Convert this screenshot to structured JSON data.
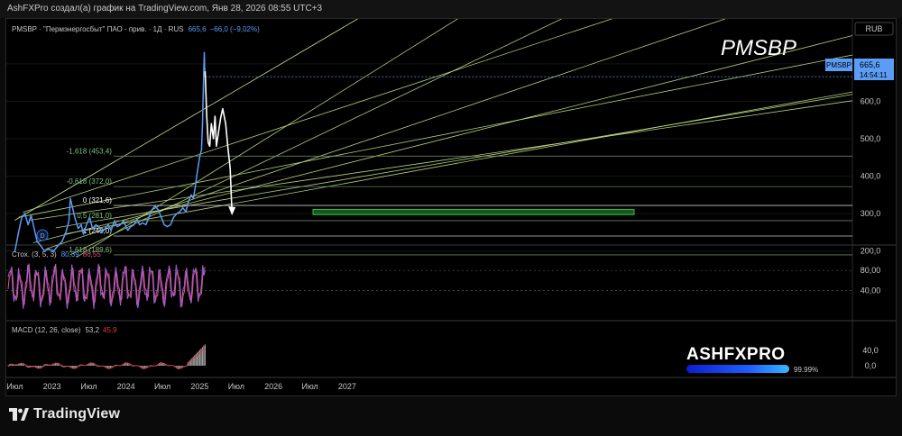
{
  "header": {
    "attribution": "AshFXPro создал(а) график на TradingView.com, Янв 28, 2026 08:55 UTC+3"
  },
  "legend": {
    "symbol": "PMSBP · \"Пермэнергосбыт\" ПАО - прив. · 1Д · RUS",
    "price": "665,6",
    "change": "−66,0 (−9,02%)"
  },
  "watermark": "PMSBP",
  "currency": "RUB",
  "price_tag": {
    "symbol": "PMSBP",
    "price": "665,6",
    "time": "14:54:11"
  },
  "fib_labels": [
    "-1,618 (453,4)",
    "-0,618 (372,0)",
    "0 (321,6)",
    "0,5 (281,0)",
    "1 (240,0)",
    "1,618 (189,6)"
  ],
  "stoch": {
    "label": "Стох. (3, 5, 3)",
    "k": "80,39",
    "d": "86,55"
  },
  "macd": {
    "label": "MACD (12, 26, close)",
    "macd": "53,2",
    "signal": "45,9"
  },
  "brand": {
    "name": "ASHFXPRO",
    "progress_label": "99.99%",
    "progress": 0.9999
  },
  "footer": {
    "logo_text": "TradingView"
  },
  "event_marker": "D",
  "colors": {
    "price_line": "#5b9cf5",
    "stoch_k": "#9b59d0",
    "stoch_d": "#e05a7a",
    "macd_hist": "#9a9a9a",
    "macd_signal": "#d93a3a",
    "trend": "#c6e48b",
    "zone": "#2fbf3a"
  },
  "chart_data": [
    {
      "type": "line",
      "title": "PMSBP",
      "x_ticks": [
        "Июл",
        "2023",
        "Июл",
        "2024",
        "Июл",
        "2025",
        "Июл",
        "2026",
        "Июл",
        "2027"
      ],
      "y_ticks": [
        "200,0",
        "300,0",
        "400,0",
        "500,0",
        "600,0",
        "700,0"
      ],
      "ylim": [
        183,
        745
      ],
      "series": [
        {
          "x": [
            "2023-07-01",
            "2023-07-20",
            "2023-08-05",
            "2023-08-20",
            "2023-09-05",
            "2023-09-20",
            "2023-10-05",
            "2023-10-20",
            "2023-11-05",
            "2023-11-25",
            "2023-12-15",
            "2024-01-10",
            "2024-02-01",
            "2024-02-20",
            "2024-03-10",
            "2024-03-25",
            "2024-04-01",
            "2024-04-10",
            "2024-04-25",
            "2024-05-10",
            "2024-05-25",
            "2024-06-05",
            "2024-06-20",
            "2024-07-05",
            "2024-07-20",
            "2024-08-05",
            "2024-08-20",
            "2024-09-05",
            "2024-09-20",
            "2024-10-05",
            "2024-10-20",
            "2024-11-05",
            "2024-11-20",
            "2024-12-05",
            "2024-12-20",
            "2025-01-10",
            "2025-01-25",
            "2025-02-10",
            "2025-02-25",
            "2025-03-10",
            "2025-03-25",
            "2025-04-10",
            "2025-04-25",
            "2025-05-10",
            "2025-05-25",
            "2025-06-10",
            "2025-06-25",
            "2025-07-10",
            "2025-07-25",
            "2025-08-10",
            "2025-08-25",
            "2025-09-10",
            "2025-09-25",
            "2025-10-10",
            "2025-10-25",
            "2025-11-05",
            "2025-11-20",
            "2025-12-01",
            "2025-12-10",
            "2025-12-20",
            "2026-01-01",
            "2026-01-05",
            "2026-01-10",
            "2026-01-15",
            "2026-01-18",
            "2026-01-20",
            "2026-01-22",
            "2026-01-24",
            "2026-01-26",
            "2026-01-28"
          ],
          "values": [
            198,
            250,
            290,
            300,
            270,
            295,
            260,
            225,
            215,
            200,
            205,
            200,
            215,
            225,
            250,
            280,
            340,
            320,
            285,
            260,
            270,
            245,
            270,
            290,
            260,
            270,
            265,
            250,
            260,
            270,
            255,
            280,
            265,
            270,
            280,
            255,
            265,
            270,
            285,
            270,
            275,
            270,
            290,
            310,
            320,
            310,
            290,
            270,
            265,
            270,
            290,
            300,
            305,
            315,
            305,
            330,
            350,
            340,
            370,
            410,
            450,
            460,
            470,
            540,
            610,
            650,
            690,
            730,
            690,
            665.6
          ]
        }
      ],
      "projection": {
        "x": [
          "2026-01-28",
          "2026-02-05",
          "2026-02-12",
          "2026-02-20",
          "2026-02-28",
          "2026-03-10",
          "2026-03-18",
          "2026-03-25",
          "2026-04-05",
          "2026-04-15",
          "2026-04-25",
          "2026-05-10",
          "2026-05-20",
          "2026-06-01",
          "2026-06-10"
        ],
        "values": [
          680,
          560,
          490,
          480,
          540,
          500,
          560,
          480,
          520,
          555,
          580,
          540,
          480,
          420,
          300
        ]
      },
      "fib_levels": [
        453.4,
        372.0,
        321.6,
        281.0,
        240.0,
        189.6
      ],
      "zone": [
        297,
        311
      ]
    },
    {
      "type": "line",
      "title": "Стох. (3, 5, 3)",
      "y_ticks": [
        "40,00",
        "80,00"
      ],
      "ylim": [
        0,
        100
      ],
      "last_k": 80.39,
      "last_d": 86.55
    },
    {
      "type": "bar",
      "title": "MACD (12, 26, close)",
      "y_ticks": [
        "0,0",
        "40,0"
      ],
      "last_macd": 53.2,
      "last_signal": 45.9
    }
  ]
}
